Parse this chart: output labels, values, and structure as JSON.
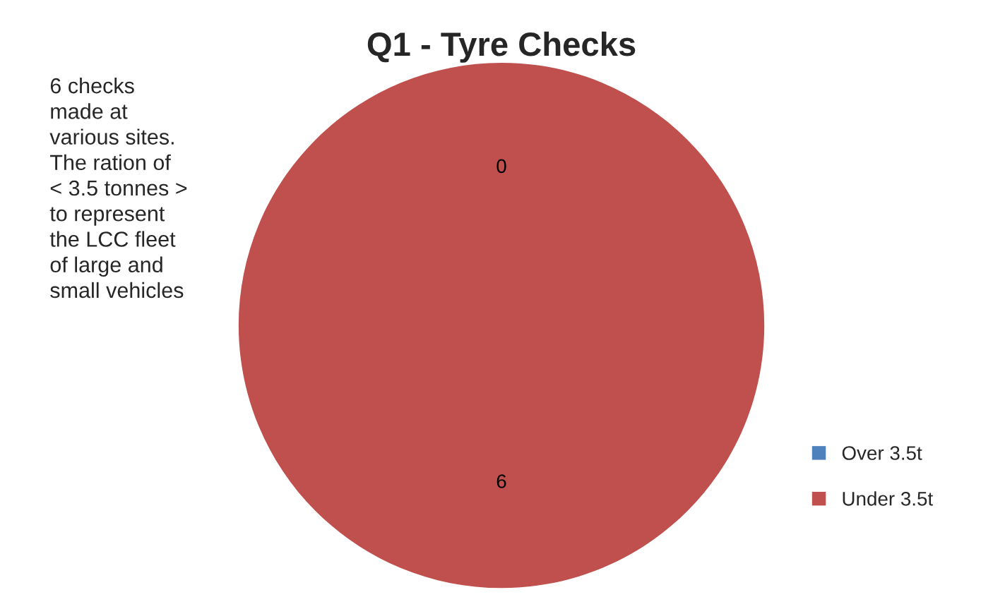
{
  "chart_data": {
    "type": "pie",
    "title": "Q1 - Tyre Checks",
    "categories": [
      "Over 3.5t",
      "Under 3.5t"
    ],
    "values": [
      0,
      6
    ],
    "value_labels": [
      "0",
      "6"
    ],
    "colors": [
      "#4f81bd",
      "#c0504d"
    ],
    "legend": "right",
    "annotations": [
      "6 checks\nmade at\nvarious sites.\nThe ration of\n< 3.5 tonnes >\nto represent\nthe LCC fleet\nof large and\nsmall vehicles"
    ]
  }
}
